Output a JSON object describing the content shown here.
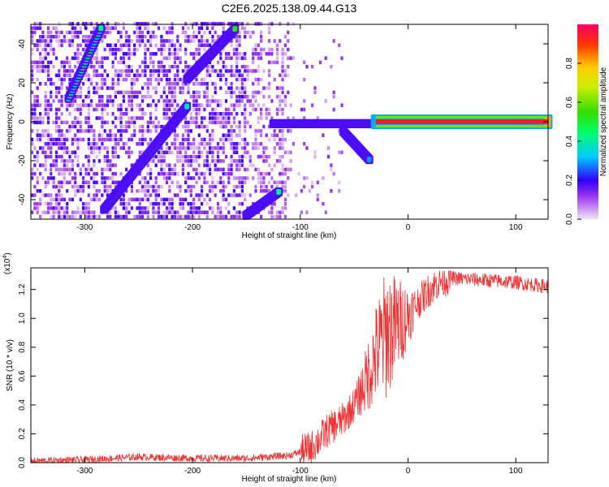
{
  "title": "C2E6.2025.138.09.44.G13",
  "chart_data": [
    {
      "type": "heatmap",
      "xlabel": "Height of straight line (km)",
      "ylabel": "Frequency (Hz)",
      "xlim": [
        -350,
        130
      ],
      "ylim": [
        -50,
        50
      ],
      "xticks": [
        -300,
        -200,
        -100,
        0,
        100
      ],
      "yticks": [
        -40,
        -20,
        0,
        20,
        40
      ],
      "colorbar": {
        "label": "Normalized spectral amplitude",
        "range": [
          0,
          1
        ],
        "ticks": [
          "0.0",
          "0.2",
          "0.4",
          "0.6",
          "0.8"
        ]
      },
      "features": [
        {
          "x": [
            -315,
            -285
          ],
          "y": [
            12,
            48
          ],
          "amplitude": 0.45
        },
        {
          "x": [
            -282,
            -205
          ],
          "y": [
            -45,
            8
          ],
          "amplitude": 0.4
        },
        {
          "x": [
            -205,
            -160
          ],
          "y": [
            22,
            48
          ],
          "amplitude": 0.5
        },
        {
          "x": [
            -150,
            -120
          ],
          "y": [
            -48,
            -36
          ],
          "amplitude": 0.4
        },
        {
          "x": [
            -125,
            -30
          ],
          "y": [
            -1,
            -1
          ],
          "amplitude": 0.45
        },
        {
          "x": [
            -60,
            -35
          ],
          "y": [
            -5,
            -20
          ],
          "amplitude": 0.3
        },
        {
          "x": [
            -30,
            130
          ],
          "y": [
            0,
            0
          ],
          "amplitude": 0.95
        }
      ]
    },
    {
      "type": "line",
      "xlabel": "Height of straight line (km)",
      "ylabel": "SNR (10 * v/v)",
      "multiplier": "(x10",
      "multiplier_exp": "4",
      "xlim": [
        -350,
        130
      ],
      "ylim": [
        0,
        1.35
      ],
      "xticks": [
        -300,
        -200,
        -100,
        0,
        100
      ],
      "yticks": [
        "0.0",
        "0.2",
        "0.4",
        "0.6",
        "0.8",
        "1.0",
        "1.2"
      ],
      "color": "#ee3333",
      "series": [
        {
          "x": [
            -350,
            -300,
            -250,
            -200,
            -150,
            -110,
            -90,
            -75,
            -60,
            -50,
            -40,
            -30,
            -20,
            -10,
            0,
            10,
            20,
            30,
            40,
            60,
            80,
            100,
            130
          ],
          "y": [
            0.01,
            0.02,
            0.04,
            0.03,
            0.03,
            0.05,
            0.1,
            0.22,
            0.3,
            0.4,
            0.55,
            0.75,
            0.9,
            0.95,
            1.02,
            1.12,
            1.2,
            1.26,
            1.28,
            1.27,
            1.26,
            1.25,
            1.22
          ]
        }
      ]
    }
  ]
}
